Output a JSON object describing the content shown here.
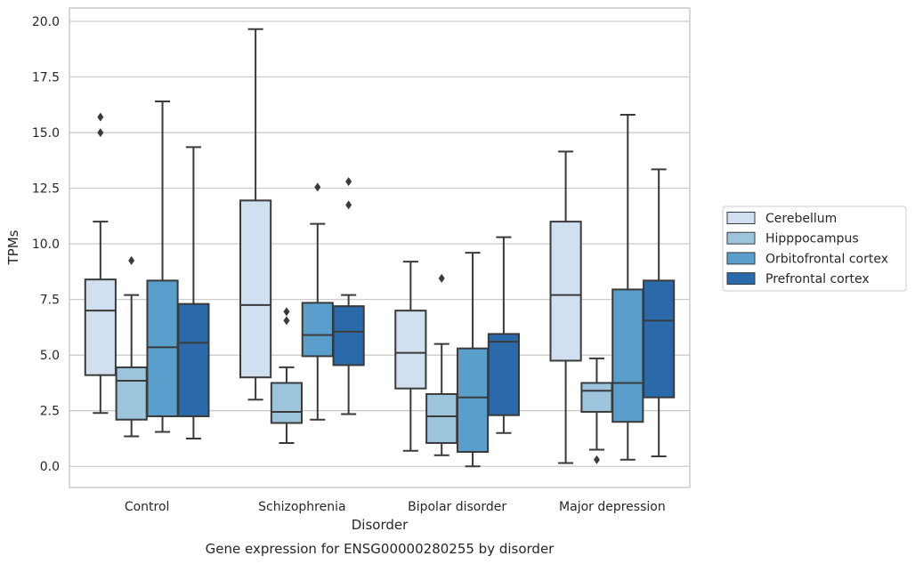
{
  "chart_data": {
    "type": "box",
    "caption": "Gene expression for ENSG00000280255 by disorder",
    "xlabel": "Disorder",
    "ylabel": "TPMs",
    "ylim": [
      -0.95,
      20.6
    ],
    "yticks": [
      "0.0",
      "2.5",
      "5.0",
      "7.5",
      "10.0",
      "12.5",
      "15.0",
      "17.5",
      "20.0"
    ],
    "grid": true,
    "legend_position": "right",
    "categories": [
      "Control",
      "Schizophrenia",
      "Bipolar disorder",
      "Major depression"
    ],
    "series": [
      {
        "name": "Cerebellum",
        "color": "#d0e0f0",
        "boxes": [
          {
            "whislo": 2.4,
            "q1": 4.1,
            "med": 7.0,
            "q3": 8.4,
            "whishi": 11.0,
            "fliers": [
              15.0,
              15.7
            ]
          },
          {
            "whislo": 3.0,
            "q1": 4.0,
            "med": 7.25,
            "q3": 11.95,
            "whishi": 19.65,
            "fliers": []
          },
          {
            "whislo": 0.7,
            "q1": 3.5,
            "med": 5.1,
            "q3": 7.0,
            "whishi": 9.2,
            "fliers": []
          },
          {
            "whislo": 0.15,
            "q1": 4.75,
            "med": 7.7,
            "q3": 11.0,
            "whishi": 14.15,
            "fliers": []
          }
        ]
      },
      {
        "name": "Hipppocampus",
        "color": "#9cc4dd",
        "boxes": [
          {
            "whislo": 1.35,
            "q1": 2.1,
            "med": 3.85,
            "q3": 4.45,
            "whishi": 7.7,
            "fliers": [
              9.25
            ]
          },
          {
            "whislo": 1.05,
            "q1": 1.95,
            "med": 2.45,
            "q3": 3.75,
            "whishi": 4.45,
            "fliers": [
              6.55,
              6.95
            ]
          },
          {
            "whislo": 0.5,
            "q1": 1.05,
            "med": 2.25,
            "q3": 3.25,
            "whishi": 5.5,
            "fliers": [
              8.45
            ]
          },
          {
            "whislo": 0.75,
            "q1": 2.45,
            "med": 3.4,
            "q3": 3.75,
            "whishi": 4.85,
            "fliers": [
              0.3
            ]
          }
        ]
      },
      {
        "name": "Orbitofrontal cortex",
        "color": "#5a9fcc",
        "boxes": [
          {
            "whislo": 1.55,
            "q1": 2.25,
            "med": 5.35,
            "q3": 8.35,
            "whishi": 16.4,
            "fliers": []
          },
          {
            "whislo": 2.1,
            "q1": 4.95,
            "med": 5.9,
            "q3": 7.35,
            "whishi": 10.9,
            "fliers": [
              12.55
            ]
          },
          {
            "whislo": 0.0,
            "q1": 0.65,
            "med": 3.1,
            "q3": 5.3,
            "whishi": 9.6,
            "fliers": []
          },
          {
            "whislo": 0.3,
            "q1": 2.0,
            "med": 3.75,
            "q3": 7.95,
            "whishi": 15.8,
            "fliers": []
          }
        ]
      },
      {
        "name": "Prefrontal cortex",
        "color": "#2a6aab",
        "boxes": [
          {
            "whislo": 1.25,
            "q1": 2.25,
            "med": 5.55,
            "q3": 7.3,
            "whishi": 14.35,
            "fliers": []
          },
          {
            "whislo": 2.35,
            "q1": 4.55,
            "med": 6.05,
            "q3": 7.2,
            "whishi": 7.7,
            "fliers": [
              11.75,
              12.8
            ]
          },
          {
            "whislo": 1.5,
            "q1": 2.3,
            "med": 5.6,
            "q3": 5.95,
            "whishi": 10.3,
            "fliers": []
          },
          {
            "whislo": 0.45,
            "q1": 3.1,
            "med": 6.55,
            "q3": 8.35,
            "whishi": 13.35,
            "fliers": []
          }
        ]
      }
    ]
  }
}
